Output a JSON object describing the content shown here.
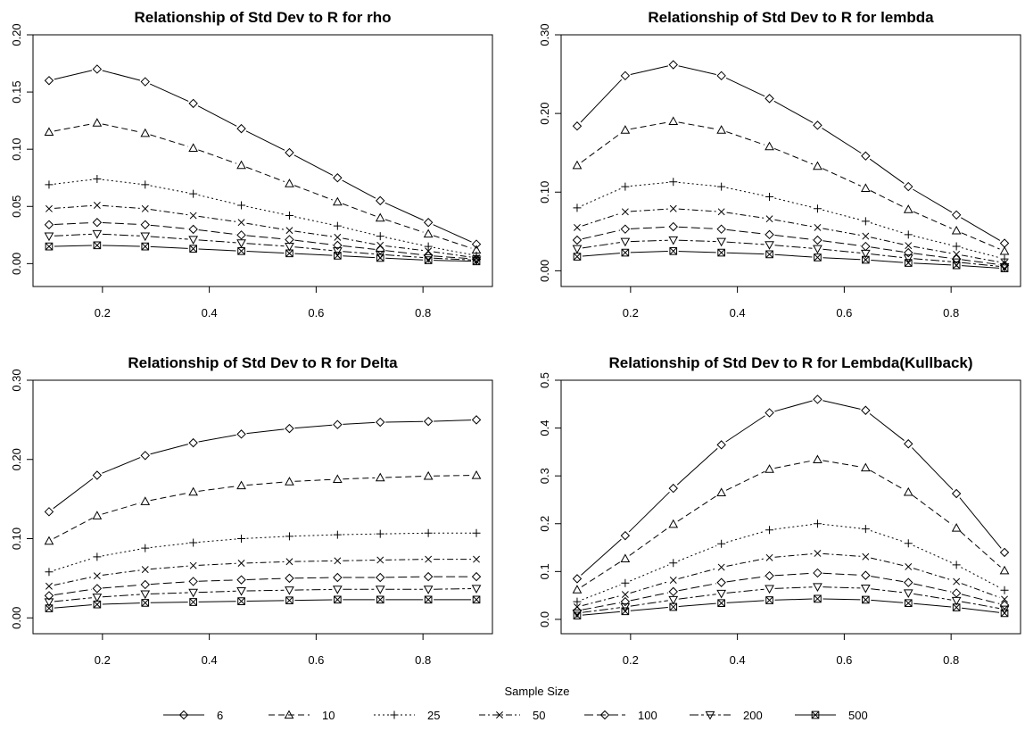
{
  "legend": {
    "title": "Sample Size",
    "items": [
      {
        "label": "6",
        "marker": "diamond",
        "dash": ""
      },
      {
        "label": "10",
        "marker": "triangle-up",
        "dash": "7,4"
      },
      {
        "label": "25",
        "marker": "plus",
        "dash": "2,3"
      },
      {
        "label": "50",
        "marker": "cross",
        "dash": "7,3,2,3"
      },
      {
        "label": "100",
        "marker": "diamond",
        "dash": "10,4"
      },
      {
        "label": "200",
        "marker": "triangle-down",
        "dash": "10,3,3,3"
      },
      {
        "label": "500",
        "marker": "boxed-x",
        "dash": ""
      }
    ]
  },
  "chart_data": [
    {
      "type": "line",
      "title": "Relationship of Std Dev to R for rho",
      "xlabel": "",
      "ylabel": "",
      "x": [
        0.1,
        0.19,
        0.28,
        0.37,
        0.46,
        0.55,
        0.64,
        0.72,
        0.81,
        0.9
      ],
      "xlim": [
        0.07,
        0.93
      ],
      "ylim": [
        -0.02,
        0.2
      ],
      "xticks": [
        "0.2",
        "0.4",
        "0.6",
        "0.8"
      ],
      "yticks": [
        "0.00",
        "0.05",
        "0.10",
        "0.15",
        "0.20"
      ],
      "series": [
        {
          "name": "6",
          "values": [
            0.16,
            0.17,
            0.159,
            0.14,
            0.118,
            0.097,
            0.075,
            0.055,
            0.036,
            0.017
          ]
        },
        {
          "name": "10",
          "values": [
            0.115,
            0.123,
            0.114,
            0.101,
            0.086,
            0.07,
            0.054,
            0.04,
            0.026,
            0.012
          ]
        },
        {
          "name": "25",
          "values": [
            0.069,
            0.074,
            0.069,
            0.061,
            0.051,
            0.042,
            0.033,
            0.024,
            0.015,
            0.007
          ]
        },
        {
          "name": "50",
          "values": [
            0.048,
            0.051,
            0.048,
            0.042,
            0.036,
            0.029,
            0.023,
            0.016,
            0.011,
            0.005
          ]
        },
        {
          "name": "100",
          "values": [
            0.034,
            0.036,
            0.034,
            0.03,
            0.025,
            0.021,
            0.016,
            0.012,
            0.007,
            0.004
          ]
        },
        {
          "name": "200",
          "values": [
            0.024,
            0.026,
            0.024,
            0.021,
            0.018,
            0.015,
            0.011,
            0.008,
            0.005,
            0.003
          ]
        },
        {
          "name": "500",
          "values": [
            0.015,
            0.016,
            0.015,
            0.013,
            0.011,
            0.009,
            0.007,
            0.005,
            0.003,
            0.002
          ]
        }
      ]
    },
    {
      "type": "line",
      "title": "Relationship of Std Dev to R for lembda",
      "xlabel": "",
      "ylabel": "",
      "x": [
        0.1,
        0.19,
        0.28,
        0.37,
        0.46,
        0.55,
        0.64,
        0.72,
        0.81,
        0.9
      ],
      "xlim": [
        0.07,
        0.93
      ],
      "ylim": [
        -0.02,
        0.3
      ],
      "xticks": [
        "0.2",
        "0.4",
        "0.6",
        "0.8"
      ],
      "yticks": [
        "0.00",
        "0.10",
        "0.20",
        "0.30"
      ],
      "series": [
        {
          "name": "6",
          "values": [
            0.184,
            0.248,
            0.262,
            0.248,
            0.219,
            0.185,
            0.146,
            0.107,
            0.071,
            0.035
          ]
        },
        {
          "name": "10",
          "values": [
            0.134,
            0.179,
            0.19,
            0.179,
            0.158,
            0.133,
            0.105,
            0.078,
            0.051,
            0.025
          ]
        },
        {
          "name": "25",
          "values": [
            0.08,
            0.107,
            0.113,
            0.107,
            0.094,
            0.079,
            0.063,
            0.046,
            0.031,
            0.015
          ]
        },
        {
          "name": "50",
          "values": [
            0.055,
            0.075,
            0.079,
            0.075,
            0.066,
            0.055,
            0.044,
            0.032,
            0.021,
            0.01
          ]
        },
        {
          "name": "100",
          "values": [
            0.039,
            0.053,
            0.056,
            0.053,
            0.046,
            0.039,
            0.031,
            0.023,
            0.015,
            0.007
          ]
        },
        {
          "name": "200",
          "values": [
            0.028,
            0.037,
            0.039,
            0.037,
            0.033,
            0.028,
            0.022,
            0.016,
            0.011,
            0.005
          ]
        },
        {
          "name": "500",
          "values": [
            0.018,
            0.023,
            0.025,
            0.023,
            0.021,
            0.017,
            0.014,
            0.01,
            0.007,
            0.003
          ]
        }
      ]
    },
    {
      "type": "line",
      "title": "Relationship of Std Dev to R for Delta",
      "xlabel": "",
      "ylabel": "",
      "x": [
        0.1,
        0.19,
        0.28,
        0.37,
        0.46,
        0.55,
        0.64,
        0.72,
        0.81,
        0.9
      ],
      "xlim": [
        0.07,
        0.93
      ],
      "ylim": [
        -0.02,
        0.3
      ],
      "xticks": [
        "0.2",
        "0.4",
        "0.6",
        "0.8"
      ],
      "yticks": [
        "0.00",
        "0.10",
        "0.20",
        "0.30"
      ],
      "series": [
        {
          "name": "6",
          "values": [
            0.134,
            0.18,
            0.205,
            0.221,
            0.232,
            0.239,
            0.244,
            0.247,
            0.248,
            0.25
          ]
        },
        {
          "name": "10",
          "values": [
            0.097,
            0.129,
            0.147,
            0.159,
            0.167,
            0.172,
            0.175,
            0.177,
            0.179,
            0.18
          ]
        },
        {
          "name": "25",
          "values": [
            0.058,
            0.077,
            0.088,
            0.095,
            0.1,
            0.103,
            0.105,
            0.106,
            0.107,
            0.107
          ]
        },
        {
          "name": "50",
          "values": [
            0.04,
            0.053,
            0.061,
            0.066,
            0.069,
            0.071,
            0.072,
            0.073,
            0.074,
            0.074
          ]
        },
        {
          "name": "100",
          "values": [
            0.028,
            0.037,
            0.042,
            0.046,
            0.048,
            0.05,
            0.051,
            0.051,
            0.052,
            0.052
          ]
        },
        {
          "name": "200",
          "values": [
            0.02,
            0.026,
            0.03,
            0.032,
            0.034,
            0.035,
            0.036,
            0.036,
            0.036,
            0.037
          ]
        },
        {
          "name": "500",
          "values": [
            0.012,
            0.017,
            0.019,
            0.02,
            0.021,
            0.022,
            0.023,
            0.023,
            0.023,
            0.023
          ]
        }
      ]
    },
    {
      "type": "line",
      "title": "Relationship of Std Dev to R for Lembda(Kullback)",
      "xlabel": "",
      "ylabel": "",
      "x": [
        0.1,
        0.19,
        0.28,
        0.37,
        0.46,
        0.55,
        0.64,
        0.72,
        0.81,
        0.9
      ],
      "xlim": [
        0.07,
        0.93
      ],
      "ylim": [
        -0.03,
        0.5
      ],
      "xticks": [
        "0.2",
        "0.4",
        "0.6",
        "0.8"
      ],
      "yticks": [
        "0.0",
        "0.1",
        "0.2",
        "0.3",
        "0.4",
        "0.5"
      ],
      "series": [
        {
          "name": "6",
          "values": [
            0.085,
            0.175,
            0.274,
            0.365,
            0.432,
            0.46,
            0.437,
            0.367,
            0.263,
            0.14
          ]
        },
        {
          "name": "10",
          "values": [
            0.062,
            0.127,
            0.199,
            0.265,
            0.314,
            0.334,
            0.317,
            0.266,
            0.191,
            0.102
          ]
        },
        {
          "name": "25",
          "values": [
            0.037,
            0.076,
            0.118,
            0.158,
            0.187,
            0.2,
            0.189,
            0.159,
            0.114,
            0.061
          ]
        },
        {
          "name": "50",
          "values": [
            0.026,
            0.052,
            0.082,
            0.109,
            0.129,
            0.138,
            0.131,
            0.11,
            0.079,
            0.042
          ]
        },
        {
          "name": "100",
          "values": [
            0.018,
            0.037,
            0.058,
            0.077,
            0.091,
            0.097,
            0.092,
            0.077,
            0.055,
            0.03
          ]
        },
        {
          "name": "200",
          "values": [
            0.013,
            0.026,
            0.041,
            0.054,
            0.064,
            0.068,
            0.065,
            0.055,
            0.039,
            0.021
          ]
        },
        {
          "name": "500",
          "values": [
            0.008,
            0.017,
            0.026,
            0.034,
            0.04,
            0.043,
            0.041,
            0.034,
            0.025,
            0.013
          ]
        }
      ]
    }
  ]
}
